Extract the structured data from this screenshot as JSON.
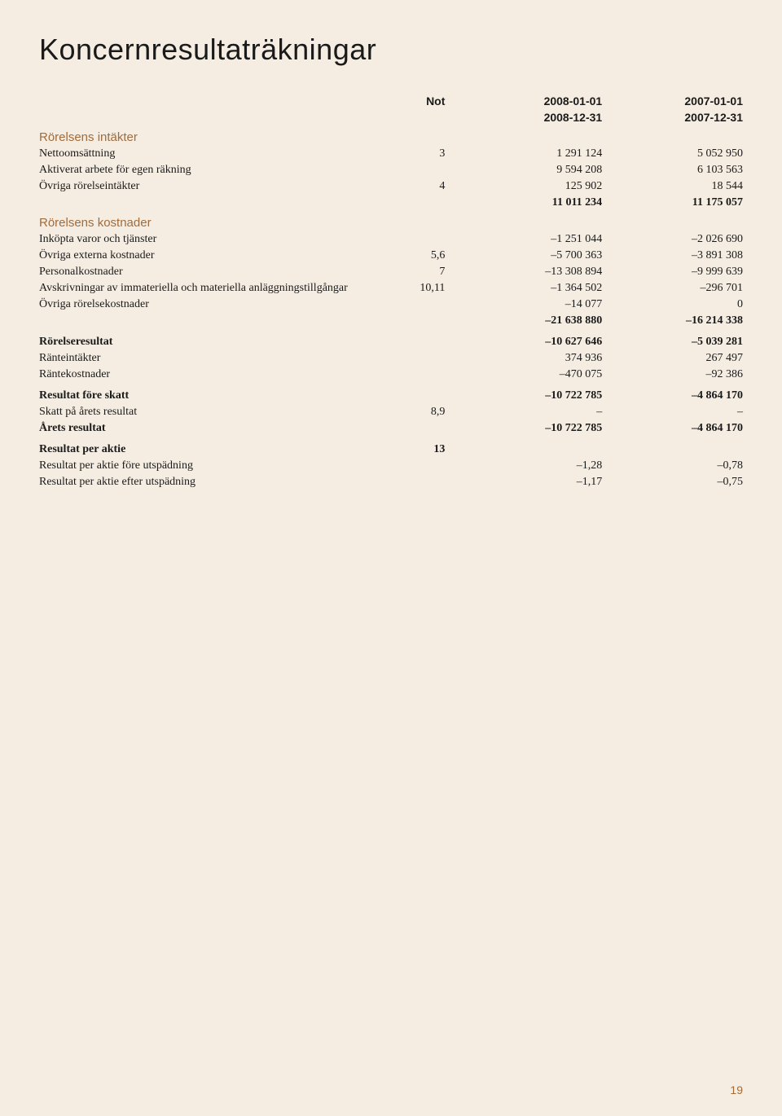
{
  "title": "Koncernresultaträkningar",
  "colors": {
    "background": "#f5ede2",
    "accent": "#a26b3a",
    "text": "#1a1a1a"
  },
  "typography": {
    "title_font": "Arial",
    "title_size_pt": 27,
    "title_weight": 400,
    "body_font": "Georgia",
    "body_size_pt": 10.5,
    "section_font": "Arial",
    "section_color": "#a26b3a"
  },
  "columns": {
    "not": "Not",
    "period1_start": "2008-01-01",
    "period1_end": "2008-12-31",
    "period2_start": "2007-01-01",
    "period2_end": "2007-12-31"
  },
  "sections": {
    "intakter": "Rörelsens intäkter",
    "kostnader": "Rörelsens kostnader"
  },
  "rows": {
    "nettooms": {
      "label": "Nettoomsättning",
      "not": "3",
      "y1": "1 291 124",
      "y2": "5 052 950"
    },
    "aktiverat": {
      "label": "Aktiverat arbete för egen räkning",
      "not": "",
      "y1": "9 594 208",
      "y2": "6 103 563"
    },
    "ovriga_int": {
      "label": "Övriga rörelseintäkter",
      "not": "4",
      "y1": "125 902",
      "y2": "18 544"
    },
    "sum_int": {
      "label": "",
      "not": "",
      "y1": "11 011 234",
      "y2": "11 175 057"
    },
    "inkopta": {
      "label": "Inköpta varor och tjänster",
      "not": "",
      "y1": "–1 251 044",
      "y2": "–2 026 690"
    },
    "ovriga_ext": {
      "label": "Övriga externa kostnader",
      "not": "5,6",
      "y1": "–5 700 363",
      "y2": "–3 891 308"
    },
    "personal": {
      "label": "Personalkostnader",
      "not": "7",
      "y1": "–13 308 894",
      "y2": "–9 999 639"
    },
    "avskriv": {
      "label": "Avskrivningar av immateriella och materiella anläggningstillgångar",
      "not": "10,11",
      "y1": "–1 364 502",
      "y2": "–296 701"
    },
    "ovriga_kost": {
      "label": "Övriga rörelsekostnader",
      "not": "",
      "y1": "–14 077",
      "y2": "0"
    },
    "sum_kost": {
      "label": "",
      "not": "",
      "y1": "–21 638 880",
      "y2": "–16 214 338"
    },
    "rorelseres": {
      "label": "Rörelseresultat",
      "not": "",
      "y1": "–10 627 646",
      "y2": "–5 039 281"
    },
    "ranteint": {
      "label": "Ränteintäkter",
      "not": "",
      "y1": "374 936",
      "y2": "267 497"
    },
    "rantekost": {
      "label": "Räntekostnader",
      "not": "",
      "y1": "–470 075",
      "y2": "–92 386"
    },
    "res_fore": {
      "label": "Resultat före skatt",
      "not": "",
      "y1": "–10 722 785",
      "y2": "–4 864 170"
    },
    "skatt": {
      "label": "Skatt på årets resultat",
      "not": "8,9",
      "y1": "–",
      "y2": "–"
    },
    "arets_res": {
      "label": "Årets resultat",
      "not": "",
      "y1": "–10 722 785",
      "y2": "–4 864 170"
    },
    "res_aktie": {
      "label": "Resultat per aktie",
      "not": "13",
      "y1": "",
      "y2": ""
    },
    "res_fore_utsp": {
      "label": "Resultat per aktie före utspädning",
      "not": "",
      "y1": "–1,28",
      "y2": "–0,78"
    },
    "res_efter_utsp": {
      "label": "Resultat per aktie efter utspädning",
      "not": "",
      "y1": "–1,17",
      "y2": "–0,75"
    }
  },
  "page_number": "19"
}
